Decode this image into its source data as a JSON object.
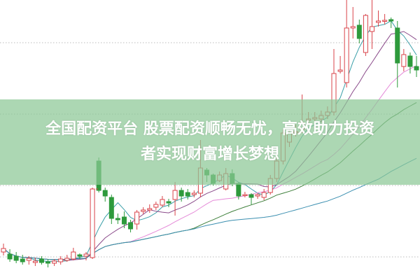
{
  "banner": {
    "line1": "全国配资平台 股票配资顺畅无忧，高效助力投资",
    "line2": "者实现财富增长梦想"
  },
  "colors": {
    "up": "#d9434a",
    "down": "#2e9a3c",
    "ma5": "#3a9fa8",
    "ma10": "#8a4a8a",
    "ma20": "#e58ad8",
    "ma30": "#3d7f3a",
    "ma60": "#3b8fb0",
    "grid": "#bbbbbb",
    "banner": "#8cc896"
  },
  "chart_data": {
    "type": "candlestick",
    "title": "",
    "xlabel": "",
    "ylabel": "",
    "ylim": [
      0,
      400
    ],
    "grid": "horizontal-dotted",
    "moving_averages": [
      5,
      10,
      20,
      30,
      60
    ],
    "candles_ohlc": [
      [
        40,
        45,
        52,
        35
      ],
      [
        37,
        30,
        44,
        26
      ],
      [
        34,
        28,
        40,
        24
      ],
      [
        30,
        26,
        36,
        22
      ],
      [
        28,
        31,
        34,
        22
      ],
      [
        25,
        27,
        32,
        20
      ],
      [
        30,
        25,
        34,
        22
      ],
      [
        26,
        24,
        30,
        18
      ],
      [
        24,
        27,
        30,
        20
      ],
      [
        26,
        30,
        34,
        22
      ],
      [
        28,
        31,
        36,
        26
      ],
      [
        30,
        40,
        46,
        28
      ],
      [
        36,
        34,
        38,
        30
      ],
      [
        34,
        37,
        40,
        28
      ],
      [
        32,
        130,
        132,
        30
      ],
      [
        170,
        128,
        175,
        125
      ],
      [
        128,
        120,
        132,
        112
      ],
      [
        118,
        88,
        122,
        80
      ],
      [
        88,
        86,
        95,
        80
      ],
      [
        90,
        80,
        98,
        74
      ],
      [
        82,
        73,
        86,
        68
      ],
      [
        80,
        97,
        100,
        72
      ],
      [
        98,
        100,
        104,
        94
      ],
      [
        100,
        102,
        108,
        96
      ],
      [
        104,
        108,
        112,
        100
      ],
      [
        107,
        115,
        120,
        104
      ],
      [
        112,
        110,
        116,
        104
      ],
      [
        115,
        128,
        140,
        92
      ],
      [
        128,
        120,
        132,
        112
      ],
      [
        125,
        120,
        130,
        115
      ],
      [
        122,
        124,
        128,
        118
      ],
      [
        124,
        160,
        200,
        118
      ],
      [
        157,
        150,
        160,
        140
      ],
      [
        150,
        138,
        152,
        135
      ],
      [
        142,
        150,
        155,
        140
      ],
      [
        130,
        152,
        160,
        128
      ],
      [
        152,
        138,
        158,
        134
      ],
      [
        138,
        120,
        140,
        115
      ],
      [
        122,
        122,
        126,
        118
      ],
      [
        122,
        118,
        124,
        108
      ],
      [
        120,
        122,
        124,
        116
      ],
      [
        118,
        125,
        130,
        114
      ],
      [
        125,
        145,
        150,
        122
      ],
      [
        145,
        170,
        175,
        140
      ],
      [
        170,
        210,
        215,
        165
      ],
      [
        197,
        210,
        215,
        190
      ],
      [
        210,
        212,
        222,
        205
      ],
      [
        215,
        225,
        265,
        210
      ],
      [
        228,
        230,
        240,
        222
      ],
      [
        230,
        232,
        240,
        225
      ],
      [
        230,
        235,
        242,
        225
      ],
      [
        235,
        240,
        248,
        230
      ],
      [
        240,
        295,
        330,
        235
      ],
      [
        298,
        300,
        320,
        295
      ],
      [
        282,
        360,
        400,
        275
      ],
      [
        360,
        362,
        390,
        345
      ],
      [
        364,
        345,
        372,
        338
      ],
      [
        325,
        378,
        380,
        320
      ],
      [
        355,
        362,
        400,
        330
      ],
      [
        368,
        370,
        385,
        362
      ],
      [
        370,
        371,
        380,
        365
      ],
      [
        372,
        370,
        375,
        360
      ],
      [
        360,
        310,
        370,
        275
      ],
      [
        305,
        322,
        330,
        298
      ],
      [
        320,
        305,
        325,
        295
      ],
      [
        305,
        300,
        320,
        290
      ]
    ],
    "gridlines": [
      339,
      237,
      135,
      33
    ]
  }
}
